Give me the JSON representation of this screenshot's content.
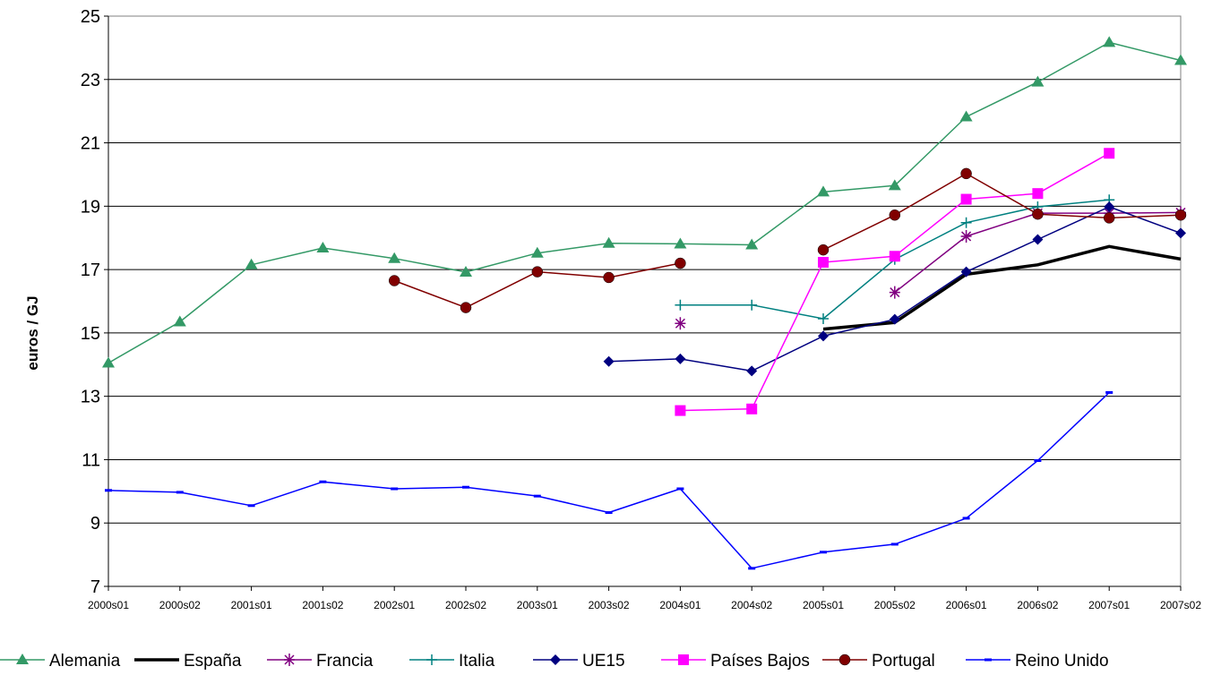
{
  "chart_data": {
    "type": "line",
    "title": "",
    "xlabel": "",
    "ylabel": "euros / GJ",
    "ylim": [
      7,
      25
    ],
    "yticks": [
      7,
      9,
      11,
      13,
      15,
      17,
      19,
      21,
      23,
      25
    ],
    "grid": true,
    "legend_position": "bottom",
    "categories": [
      "2000s01",
      "2000s02",
      "2001s01",
      "2001s02",
      "2002s01",
      "2002s02",
      "2003s01",
      "2003s02",
      "2004s01",
      "2004s02",
      "2005s01",
      "2005s02",
      "2006s01",
      "2006s02",
      "2007s01",
      "2007s02"
    ],
    "series": [
      {
        "name": "Alemania",
        "color": "#339966",
        "marker": "triangle",
        "width": 1.5,
        "values": [
          14.05,
          15.35,
          17.15,
          17.68,
          17.35,
          16.92,
          17.52,
          17.83,
          17.81,
          17.78,
          19.45,
          19.65,
          21.82,
          22.92,
          24.17,
          23.6
        ]
      },
      {
        "name": "España",
        "color": "#000000",
        "marker": "none",
        "width": 3.5,
        "values": [
          null,
          null,
          null,
          null,
          null,
          null,
          null,
          null,
          null,
          null,
          15.12,
          15.33,
          16.85,
          17.15,
          17.73,
          17.33
        ]
      },
      {
        "name": "Francia",
        "color": "#800080",
        "marker": "star",
        "width": 1.5,
        "values": [
          null,
          null,
          null,
          null,
          null,
          null,
          null,
          null,
          15.3,
          null,
          null,
          16.28,
          18.05,
          18.78,
          18.78,
          18.8
        ]
      },
      {
        "name": "Italia",
        "color": "#008080",
        "marker": "plus",
        "width": 1.5,
        "values": [
          null,
          null,
          null,
          null,
          null,
          null,
          null,
          null,
          15.88,
          15.88,
          15.45,
          17.32,
          18.48,
          18.98,
          19.2,
          null
        ]
      },
      {
        "name": "UE15",
        "color": "#000080",
        "marker": "diamond",
        "width": 1.5,
        "values": [
          null,
          null,
          null,
          null,
          null,
          null,
          null,
          14.1,
          14.18,
          13.8,
          14.9,
          15.43,
          16.93,
          17.95,
          18.98,
          18.15
        ]
      },
      {
        "name": "Países Bajos",
        "color": "#ff00ff",
        "marker": "square",
        "width": 1.5,
        "values": [
          null,
          null,
          null,
          null,
          null,
          null,
          null,
          null,
          12.55,
          12.6,
          17.23,
          17.42,
          19.22,
          19.4,
          20.67,
          null
        ]
      },
      {
        "name": "Portugal",
        "color": "#800000",
        "marker": "circle",
        "width": 1.5,
        "values": [
          null,
          null,
          null,
          null,
          16.65,
          15.8,
          16.93,
          16.75,
          17.2,
          null,
          17.62,
          18.72,
          20.03,
          18.75,
          18.63,
          18.72
        ]
      },
      {
        "name": "Reino Unido",
        "color": "#0000ff",
        "marker": "dash",
        "width": 1.5,
        "values": [
          10.03,
          9.97,
          9.55,
          10.3,
          10.08,
          10.13,
          9.85,
          9.33,
          10.08,
          7.57,
          8.08,
          8.33,
          9.15,
          10.97,
          13.12,
          null
        ]
      }
    ]
  }
}
